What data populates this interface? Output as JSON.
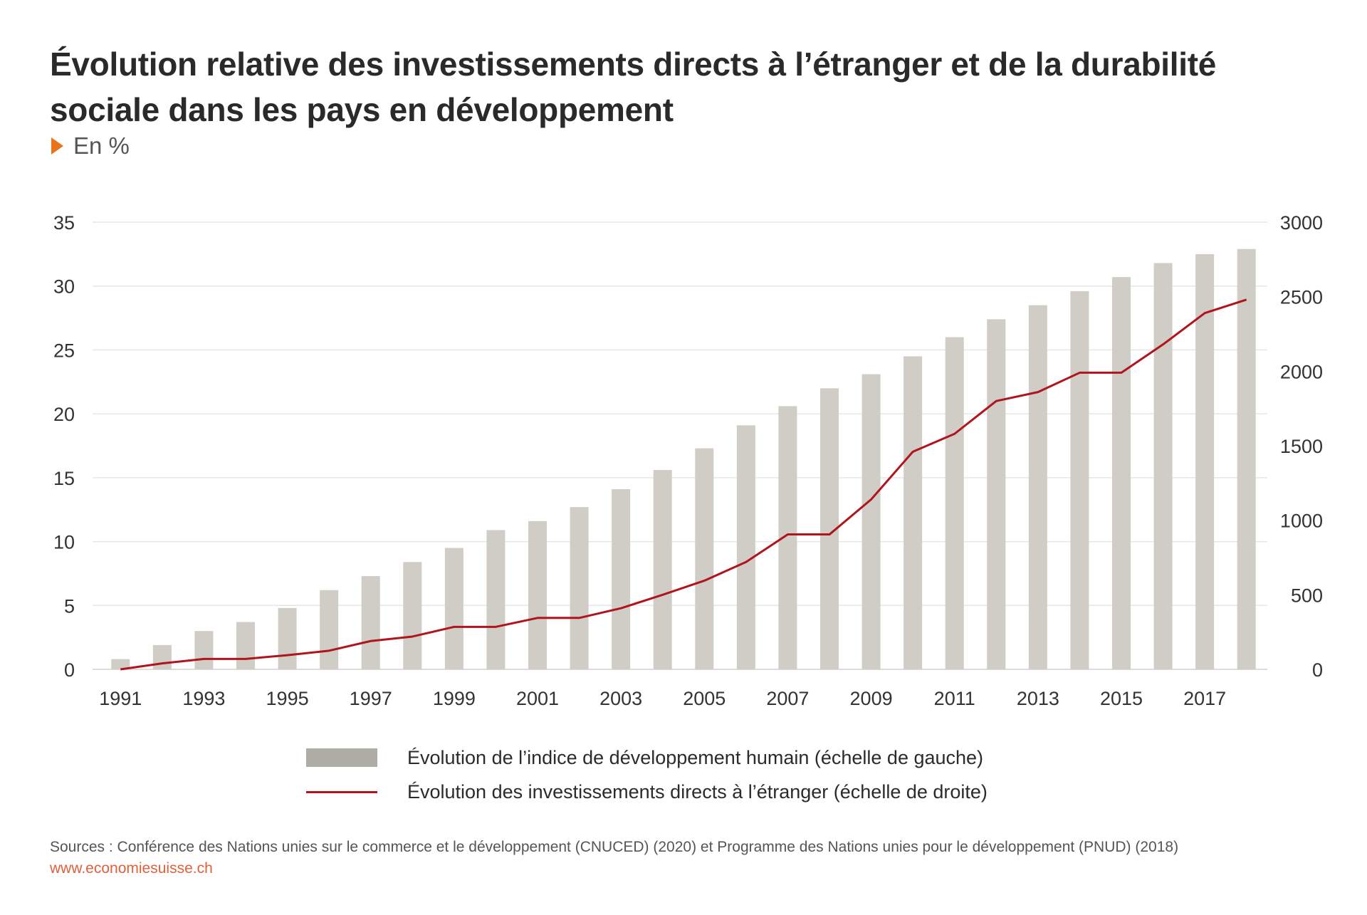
{
  "title": "Évolution relative des investissements directs à l’étranger et de la durabilité sociale dans les pays en développement",
  "subtitle": "En %",
  "legend": {
    "bars_label": "Évolution de l’indice de développement humain (échelle de gauche)",
    "line_label": "Évolution des investissements directs à l’étranger (échelle de droite)"
  },
  "sources": "Sources : Conférence des Nations unies sur le commerce et le développement (CNUCED) (2020) et Programme des Nations unies pour le développement (PNUD) (2018)",
  "website": "www.economiesuisse.ch",
  "colors": {
    "bars": "#cfcdc5",
    "line": "#b0141c",
    "grid": "#e6e6e6",
    "accent": "#e8731a"
  },
  "chart_data": {
    "type": "bar",
    "x": [
      1991,
      1992,
      1993,
      1994,
      1995,
      1996,
      1997,
      1998,
      1999,
      2000,
      2001,
      2002,
      2003,
      2004,
      2005,
      2006,
      2007,
      2008,
      2009,
      2010,
      2011,
      2012,
      2013,
      2014,
      2015,
      2016,
      2017,
      2018
    ],
    "x_tick_labels": [
      "1991",
      "1993",
      "1995",
      "1997",
      "1999",
      "2001",
      "2003",
      "2005",
      "2007",
      "2009",
      "2011",
      "2013",
      "2015",
      "2017"
    ],
    "series": [
      {
        "name": "Évolution de l’indice de développement humain (échelle de gauche)",
        "type": "bar",
        "axis": "left",
        "values": [
          0.8,
          1.9,
          3.0,
          3.7,
          4.8,
          6.2,
          7.3,
          8.4,
          9.5,
          10.9,
          11.6,
          12.7,
          14.1,
          15.6,
          17.3,
          19.1,
          20.6,
          22.0,
          23.1,
          24.5,
          26.0,
          27.4,
          28.5,
          29.6,
          30.7,
          31.8,
          32.5,
          32.9
        ]
      },
      {
        "name": "Évolution des investissements directs à l’étranger (échelle de droite)",
        "type": "line",
        "axis": "right",
        "values": [
          0,
          40,
          70,
          70,
          95,
          125,
          190,
          220,
          285,
          285,
          345,
          345,
          410,
          500,
          595,
          720,
          905,
          905,
          1140,
          1460,
          1580,
          1800,
          1860,
          1990,
          1990,
          2180,
          2390,
          2480
        ]
      }
    ],
    "y_left": {
      "ylim": [
        0,
        35
      ],
      "ticks": [
        0,
        5,
        10,
        15,
        20,
        25,
        30,
        35
      ]
    },
    "y_right": {
      "ylim": [
        0,
        3000
      ],
      "ticks": [
        0,
        500,
        1000,
        1500,
        2000,
        2500,
        3000
      ]
    },
    "grid": true,
    "legend_position": "bottom"
  }
}
